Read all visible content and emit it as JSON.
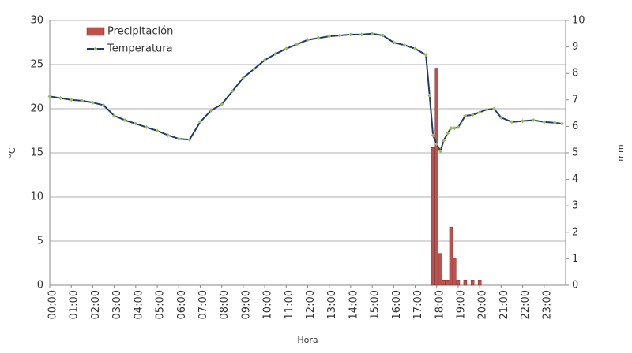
{
  "chart_data": {
    "type": "bar-line",
    "x_label": "Hora",
    "y_label": "°C",
    "y2_label": "mm",
    "xlim": [
      0,
      24
    ],
    "xticks": [
      {
        "value": 0,
        "label": "00:00"
      },
      {
        "value": 1,
        "label": "01:00"
      },
      {
        "value": 2,
        "label": "02:00"
      },
      {
        "value": 3,
        "label": "03:00"
      },
      {
        "value": 4,
        "label": "04:00"
      },
      {
        "value": 5,
        "label": "05:00"
      },
      {
        "value": 6,
        "label": "06:00"
      },
      {
        "value": 7,
        "label": "07:00"
      },
      {
        "value": 8,
        "label": "08:00"
      },
      {
        "value": 9,
        "label": "09:00"
      },
      {
        "value": 10,
        "label": "10:00"
      },
      {
        "value": 11,
        "label": "11:00"
      },
      {
        "value": 12,
        "label": "12:00"
      },
      {
        "value": 13,
        "label": "13:00"
      },
      {
        "value": 14,
        "label": "14:00"
      },
      {
        "value": 15,
        "label": "15:00"
      },
      {
        "value": 16,
        "label": "16:00"
      },
      {
        "value": 17,
        "label": "17:00"
      },
      {
        "value": 18,
        "label": "18:00"
      },
      {
        "value": 19,
        "label": "19:00"
      },
      {
        "value": 20,
        "label": "20:00"
      },
      {
        "value": 21,
        "label": "21:00"
      },
      {
        "value": 22,
        "label": "22:00"
      },
      {
        "value": 23,
        "label": "23:00"
      }
    ],
    "ylim": [
      0,
      30
    ],
    "yticks": [
      0,
      5,
      10,
      15,
      20,
      25,
      30
    ],
    "y2lim": [
      0,
      10
    ],
    "y2ticks": [
      0,
      1,
      2,
      3,
      4,
      5,
      6,
      7,
      8,
      9,
      10
    ],
    "grid": true,
    "legend": "top-left",
    "series": [
      {
        "name": "Precipitación",
        "type": "bar",
        "axis": "y2",
        "color": "#c0504d",
        "x": [
          17.83,
          18.0,
          18.17,
          18.33,
          18.5,
          18.67,
          18.83,
          19.0,
          19.33,
          19.67,
          20.0
        ],
        "values": [
          5.2,
          8.2,
          1.2,
          0.2,
          0.2,
          2.2,
          1.0,
          0.2,
          0.2,
          0.2,
          0.2
        ]
      },
      {
        "name": "Temperatura",
        "type": "line",
        "color": "#1f3a6e",
        "marker_color": "#9bbb59",
        "x": [
          0,
          0.5,
          1,
          1.5,
          2,
          2.5,
          3,
          3.5,
          4,
          4.5,
          5,
          5.5,
          6,
          6.5,
          7,
          7.5,
          8,
          8.5,
          9,
          9.5,
          10,
          10.5,
          11,
          11.5,
          12,
          12.5,
          13,
          13.5,
          14,
          14.5,
          15,
          15.5,
          16,
          16.5,
          17,
          17.5,
          17.67,
          17.83,
          18.0,
          18.17,
          18.33,
          18.5,
          18.67,
          18.83,
          19.0,
          19.33,
          19.67,
          20.0,
          20.33,
          20.67,
          21.0,
          21.5,
          22.0,
          22.5,
          23.0,
          23.5,
          23.83
        ],
        "values": [
          21.4,
          21.2,
          21.0,
          20.9,
          20.7,
          20.4,
          19.2,
          18.7,
          18.3,
          17.9,
          17.5,
          17.0,
          16.6,
          16.5,
          18.5,
          19.8,
          20.5,
          22.0,
          23.5,
          24.5,
          25.5,
          26.2,
          26.8,
          27.3,
          27.8,
          28.0,
          28.2,
          28.3,
          28.4,
          28.4,
          28.5,
          28.3,
          27.5,
          27.2,
          26.8,
          26.1,
          21.5,
          17.0,
          16.0,
          15.2,
          16.4,
          17.2,
          17.8,
          17.8,
          17.9,
          19.2,
          19.3,
          19.6,
          19.9,
          20.0,
          19.0,
          18.5,
          18.6,
          18.7,
          18.5,
          18.4,
          18.3
        ]
      }
    ]
  }
}
